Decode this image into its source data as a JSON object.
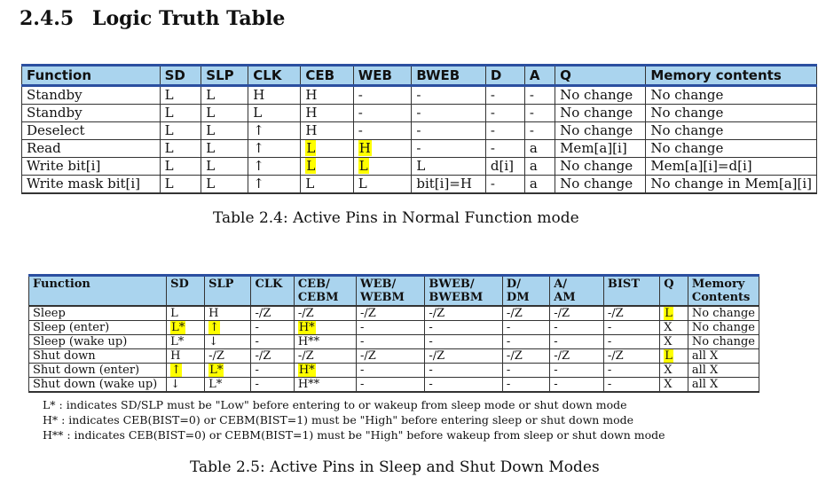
{
  "section": {
    "number": "2.4.5",
    "title": "Logic Truth Table"
  },
  "table1": {
    "caption": "Table 2.4: Active Pins in Normal Function mode",
    "headers": [
      "Function",
      "SD",
      "SLP",
      "CLK",
      "CEB",
      "WEB",
      "BWEB",
      "D",
      "A",
      "Q",
      "Memory contents"
    ],
    "rows": [
      [
        "Standby",
        "L",
        "L",
        "H",
        "H",
        "-",
        "-",
        "-",
        "-",
        "No change",
        "No change"
      ],
      [
        "Standby",
        "L",
        "L",
        "L",
        "H",
        "-",
        "-",
        "-",
        "-",
        "No change",
        "No change"
      ],
      [
        "Deselect",
        "L",
        "L",
        "↑",
        "H",
        "-",
        "-",
        "-",
        "-",
        "No change",
        "No change"
      ],
      [
        "Read",
        "L",
        "L",
        "↑",
        "L",
        "H",
        "-",
        "-",
        "a",
        "Mem[a][i]",
        "No change"
      ],
      [
        "Write bit[i]",
        "L",
        "L",
        "↑",
        "L",
        "L",
        "L",
        "d[i]",
        "a",
        "No change",
        "Mem[a][i]=d[i]"
      ],
      [
        "Write mask bit[i]",
        "L",
        "L",
        "↑",
        "L",
        "L",
        "bit[i]=H",
        "-",
        "a",
        "No change",
        "No change in Mem[a][i]"
      ]
    ],
    "highlight_color": "#ffff00"
  },
  "table2": {
    "caption": "Table 2.5: Active Pins in Sleep and Shut Down Modes",
    "headers": [
      [
        "Function"
      ],
      [
        "SD"
      ],
      [
        "SLP"
      ],
      [
        "CLK"
      ],
      [
        "CEB/",
        "CEBM"
      ],
      [
        "WEB/",
        "WEBM"
      ],
      [
        "BWEB/",
        "BWEBM"
      ],
      [
        "D/",
        "DM"
      ],
      [
        "A/",
        "AM"
      ],
      [
        "BIST"
      ],
      [
        "Q"
      ],
      [
        "Memory",
        "Contents"
      ]
    ],
    "rows": [
      [
        "Sleep",
        "L",
        "H",
        "-/Z",
        "-/Z",
        "-/Z",
        "-/Z",
        "-/Z",
        "-/Z",
        "-/Z",
        "L",
        "No change"
      ],
      [
        "Sleep (enter)",
        "L*",
        "↑",
        "-",
        "H*",
        "-",
        "-",
        "-",
        "-",
        "-",
        "X",
        "No change"
      ],
      [
        "Sleep (wake up)",
        "L*",
        "↓",
        "-",
        "H**",
        "-",
        "-",
        "-",
        "-",
        "-",
        "X",
        "No change"
      ],
      [
        "Shut down",
        "H",
        "-/Z",
        "-/Z",
        "-/Z",
        "-/Z",
        "-/Z",
        "-/Z",
        "-/Z",
        "-/Z",
        "L",
        "all X"
      ],
      [
        "Shut down (enter)",
        "↑",
        "L*",
        "-",
        "H*",
        "-",
        "-",
        "-",
        "-",
        "-",
        "X",
        "all X"
      ],
      [
        "Shut down (wake up)",
        "↓",
        "L*",
        "-",
        "H**",
        "-",
        "-",
        "-",
        "-",
        "-",
        "X",
        "all X"
      ]
    ],
    "notes": [
      "L* : indicates SD/SLP must be \"Low\" before entering to or wakeup from sleep mode or shut down mode",
      "H* : indicates CEB(BIST=0) or CEBM(BIST=1) must be \"High\" before entering sleep or shut down mode",
      "H** : indicates CEB(BIST=0) or CEBM(BIST=1) must be \"High\" before wakeup from sleep or shut down mode"
    ]
  }
}
